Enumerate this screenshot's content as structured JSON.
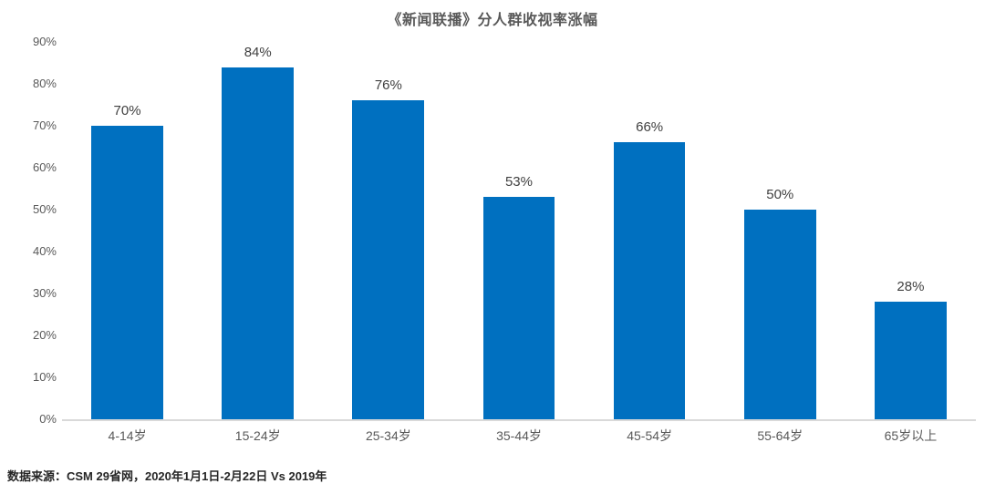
{
  "chart_data": {
    "type": "bar",
    "title": "《新闻联播》分人群收视率涨幅",
    "categories": [
      "4-14岁",
      "15-24岁",
      "25-34岁",
      "35-44岁",
      "45-54岁",
      "55-64岁",
      "65岁以上"
    ],
    "values": [
      70,
      84,
      76,
      53,
      66,
      50,
      28
    ],
    "value_labels": [
      "70%",
      "84%",
      "76%",
      "53%",
      "66%",
      "50%",
      "28%"
    ],
    "xlabel": "",
    "ylabel": "",
    "ylim": [
      0,
      90
    ],
    "y_ticks": [
      0,
      10,
      20,
      30,
      40,
      50,
      60,
      70,
      80,
      90
    ],
    "y_tick_labels": [
      "0%",
      "10%",
      "20%",
      "30%",
      "40%",
      "50%",
      "60%",
      "70%",
      "80%",
      "90%"
    ],
    "grid": false,
    "legend": "none",
    "bar_color": "#0070C0",
    "axis_line_color": "#d9d9d9",
    "source_note": "数据来源：CSM 29省网，2020年1月1日-2月22日 Vs 2019年"
  }
}
